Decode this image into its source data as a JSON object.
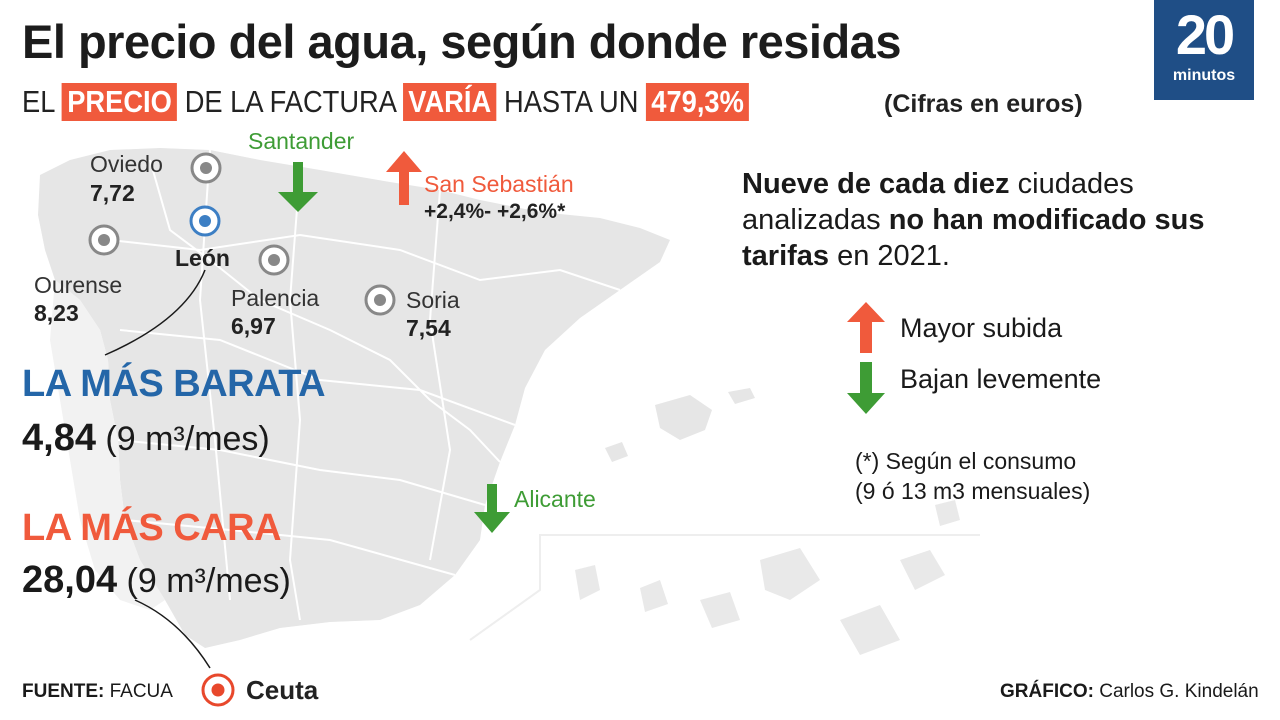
{
  "header": {
    "title": "El precio del agua, según donde residas",
    "subtitle_prefix": "EL",
    "subtitle_hl1": "PRECIO",
    "subtitle_mid": "DE LA FACTURA",
    "subtitle_hl2": "VARÍA",
    "subtitle_mid2": "HASTA UN",
    "subtitle_hl3": "479,3%",
    "units_note": "(Cifras en euros)"
  },
  "logo": {
    "number": "20",
    "word": "minutos"
  },
  "cities": {
    "oviedo": {
      "name": "Oviedo",
      "value": "7,72"
    },
    "ourense": {
      "name": "Ourense",
      "value": "8,23"
    },
    "leon": {
      "name": "León"
    },
    "palencia": {
      "name": "Palencia",
      "value": "6,97"
    },
    "soria": {
      "name": "Soria",
      "value": "7,54"
    },
    "santander": {
      "name": "Santander"
    },
    "san_sebastian": {
      "name": "San Sebastián",
      "value": "+2,4%- +2,6%*"
    },
    "alicante": {
      "name": "Alicante"
    },
    "ceuta": {
      "name": "Ceuta"
    }
  },
  "cheapest": {
    "label": "LA MÁS BARATA",
    "value": "4,84",
    "unit": "(9 m³/mes)"
  },
  "most_expensive": {
    "label": "LA MÁS CARA",
    "value": "28,04",
    "unit": "(9 m³/mes)"
  },
  "info": {
    "p1_bold": "Nueve de cada diez",
    "p1_rest": " ciudades analizadas ",
    "p2_bold": "no han modificado sus tarifas",
    "p2_rest": " en 2021."
  },
  "legend": {
    "up_label": "Mayor subida",
    "down_label": "Bajan levemente"
  },
  "footnote": {
    "line1": "(*) Según el consumo",
    "line2": "(9 ó 13 m3 mensuales)"
  },
  "footer": {
    "source_label": "FUENTE:",
    "source": "FACUA",
    "credit_label": "GRÁFICO:",
    "credit": "Carlos G. Kindelán"
  },
  "colors": {
    "map_fill": "#e6e6e6",
    "up_arrow": "#f05a3c",
    "down_arrow": "#3e9c35",
    "highlight": "#f05a3c",
    "cheap_blue": "#2466a8",
    "logo_bg": "#1f4e86"
  }
}
